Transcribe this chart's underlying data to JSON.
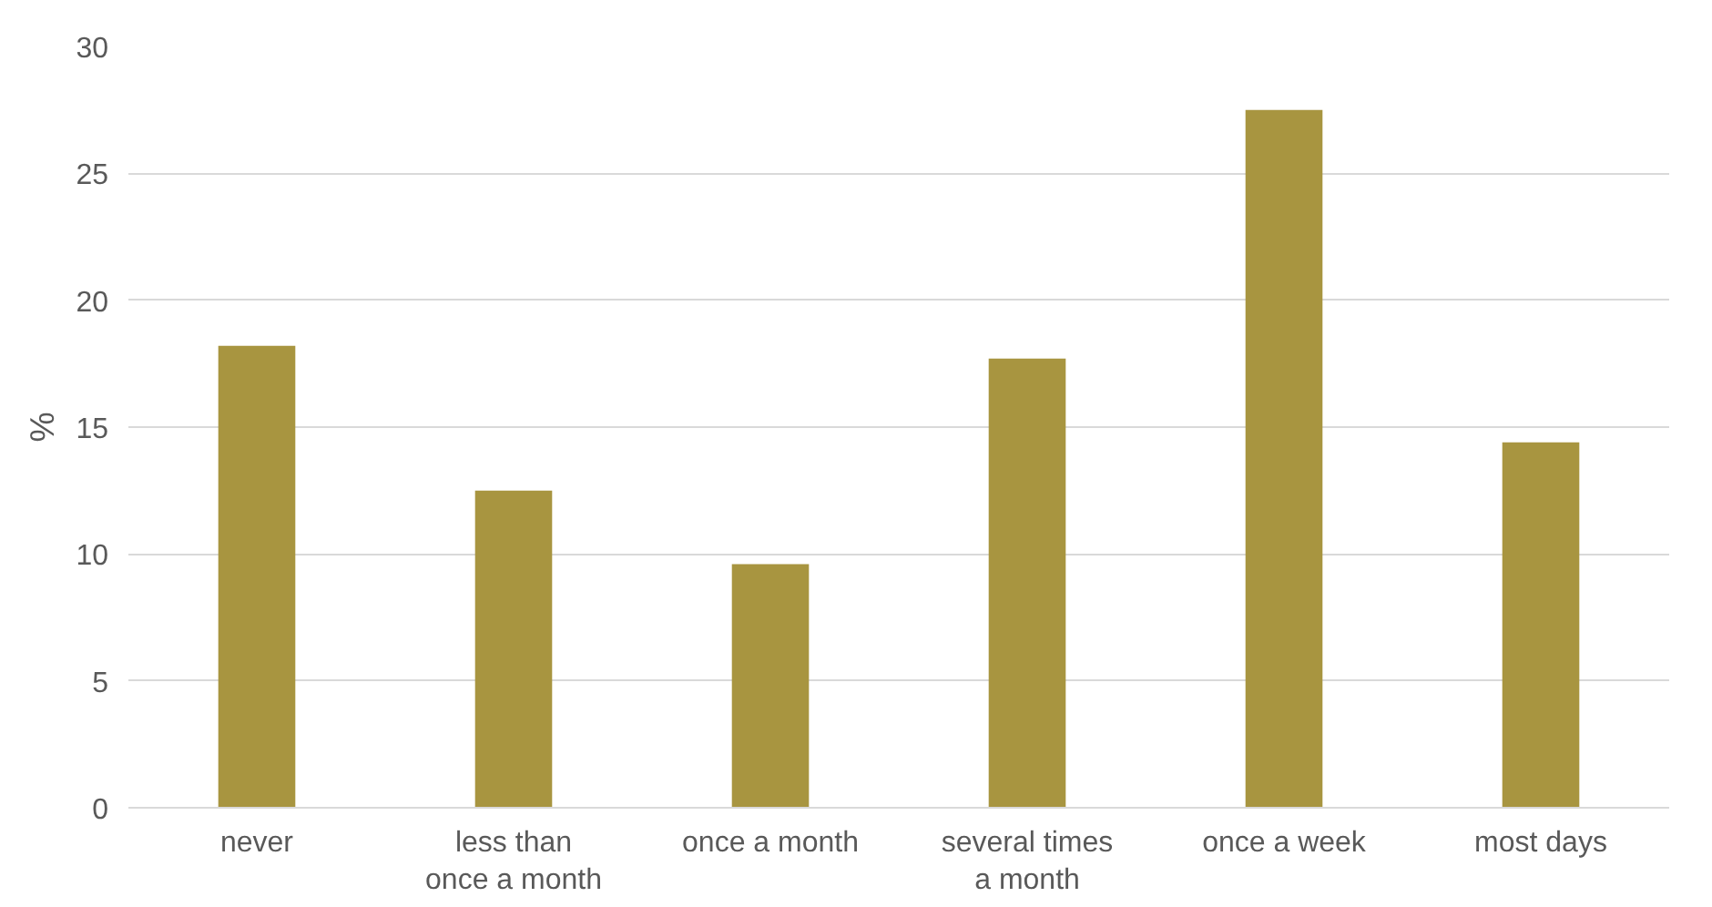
{
  "chart_data": {
    "type": "bar",
    "ylabel": "%",
    "categories": [
      "never",
      "less than once a month",
      "once a month",
      "several times a month",
      "once a week",
      "most days"
    ],
    "values": [
      18.2,
      12.5,
      9.6,
      17.7,
      27.5,
      14.4
    ],
    "color": "#a89540",
    "ylim": [
      0,
      30
    ],
    "yticks": [
      0,
      5,
      10,
      15,
      20,
      25,
      30
    ],
    "grid": "y"
  }
}
